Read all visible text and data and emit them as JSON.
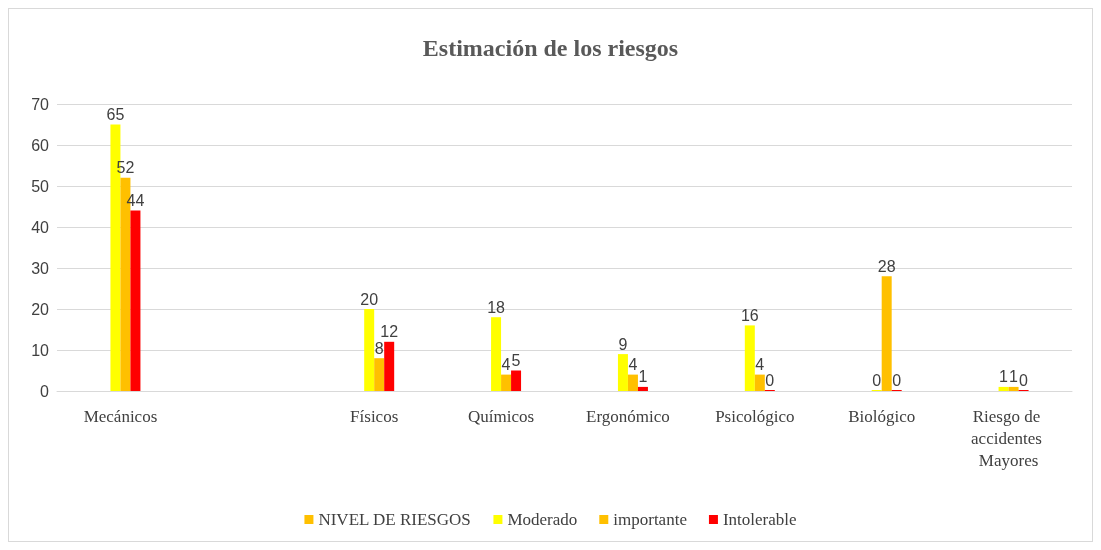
{
  "chart_data": {
    "type": "bar",
    "title": "Estimación de los riesgos",
    "categories": [
      "Mecánicos",
      null,
      "Físicos",
      "Químicos",
      "Ergonómico",
      "Psicológico",
      "Biológico",
      "Riesgo de accidentes Mayores"
    ],
    "series": [
      {
        "name": "NIVEL DE RIESGOS",
        "color": "#ffc000",
        "values": [
          null,
          null,
          null,
          null,
          null,
          null,
          null,
          null
        ]
      },
      {
        "name": "Moderado",
        "color": "#ffff00",
        "values": [
          65,
          null,
          20,
          18,
          9,
          16,
          0,
          1
        ]
      },
      {
        "name": "importante",
        "color": "#ffc000",
        "values": [
          52,
          null,
          8,
          4,
          4,
          4,
          28,
          1
        ]
      },
      {
        "name": "Intolerable",
        "color": "#ff0000",
        "values": [
          44,
          null,
          12,
          5,
          1,
          0,
          0,
          0
        ]
      }
    ],
    "ylim": [
      0,
      70
    ],
    "yticks": [
      0,
      10,
      20,
      30,
      40,
      50,
      60,
      70
    ],
    "grid": "y",
    "legend": "bottom",
    "data_labels": true
  }
}
